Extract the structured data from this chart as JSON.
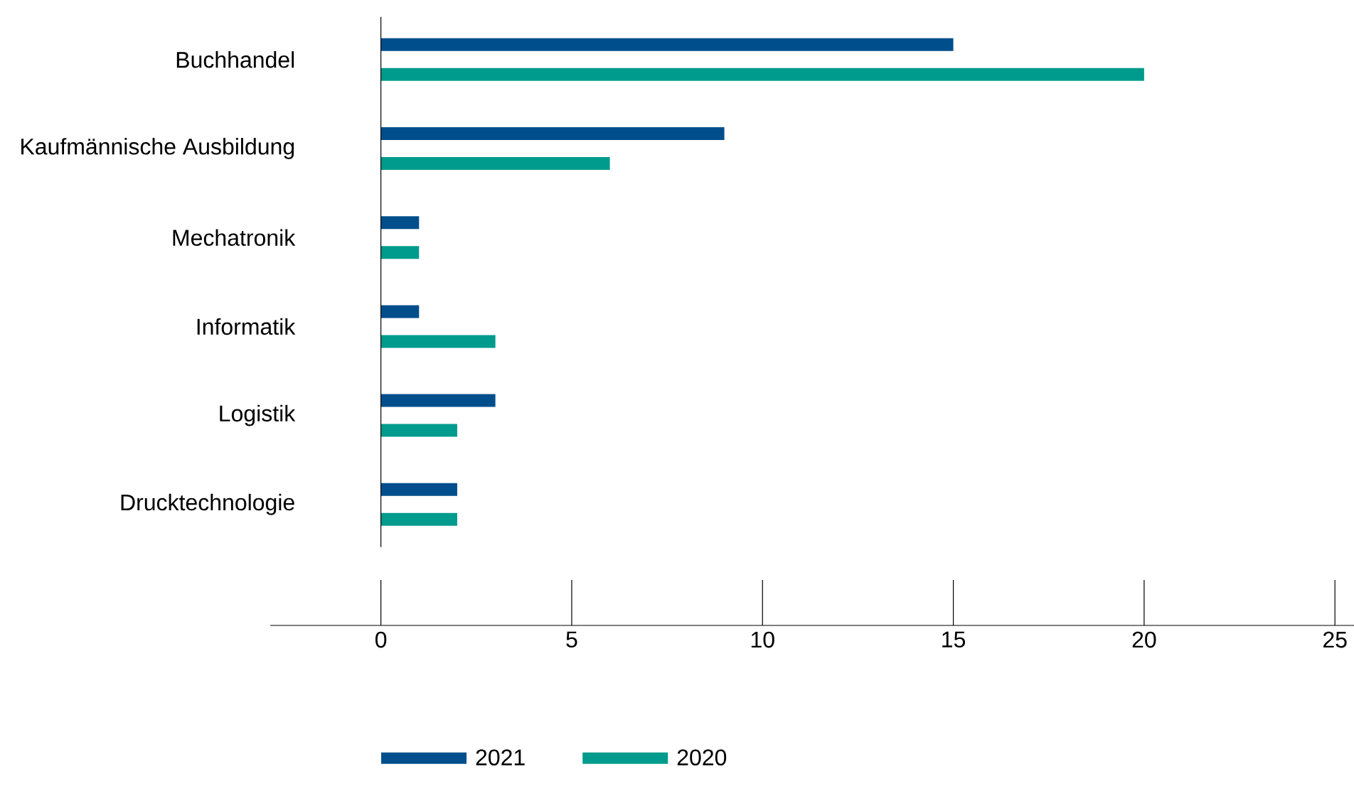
{
  "chart_data": {
    "type": "bar",
    "orientation": "horizontal",
    "categories": [
      "Buchhandel",
      "Kaufmännische Ausbildung",
      "Mechatronik",
      "Informatik",
      "Logistik",
      "Drucktechnologie"
    ],
    "series": [
      {
        "name": "2021",
        "color": "#004f8c",
        "values": [
          15,
          9,
          1,
          1,
          3,
          2
        ]
      },
      {
        "name": "2020",
        "color": "#009b8c",
        "values": [
          20,
          6,
          1,
          3,
          2,
          2
        ]
      }
    ],
    "xlim": [
      -2.9,
      25.5
    ],
    "xticks": [
      0,
      5,
      10,
      15,
      20,
      25
    ],
    "legend": "bottom"
  }
}
